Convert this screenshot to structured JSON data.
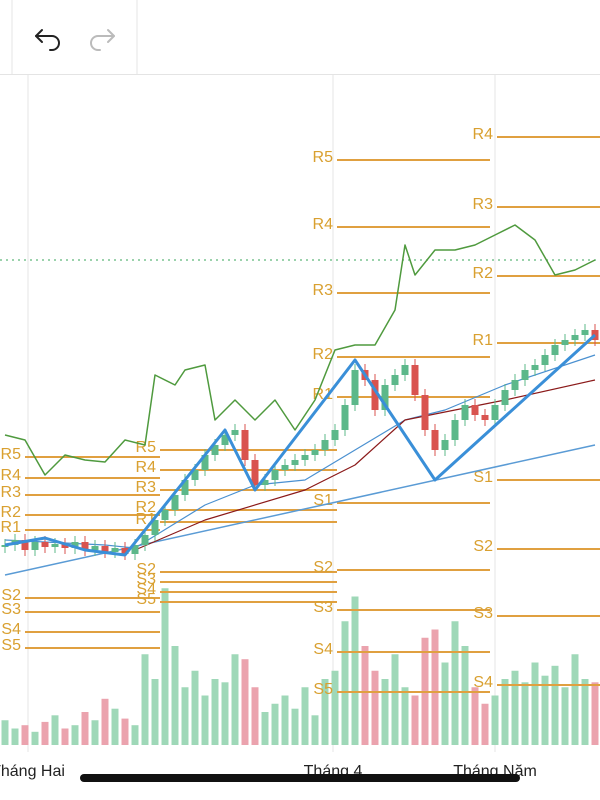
{
  "chart_data": {
    "type": "candlestick",
    "xlim": [
      -0.5,
      59.5
    ],
    "ylim": [
      -120,
      500
    ],
    "volume_lim": [
      0,
      100
    ],
    "up_color": "#5cb88a",
    "down_color": "#d9534f",
    "volume_up_color": "#9fd8b8",
    "volume_down_color": "#eba3ae",
    "xticks": [
      {
        "value": 2.3,
        "label": "Tháng Hai"
      },
      {
        "value": 32.8,
        "label": "Tháng 4"
      },
      {
        "value": 49,
        "label": "Tháng Năm"
      }
    ],
    "grid": true,
    "open": [
      33,
      35,
      40,
      30,
      38,
      33,
      36,
      32,
      38,
      30,
      34,
      28,
      32,
      26,
      35,
      45,
      60,
      70,
      85,
      100,
      110,
      125,
      135,
      145,
      150,
      120,
      95,
      100,
      110,
      115,
      120,
      125,
      130,
      140,
      150,
      175,
      210,
      200,
      170,
      195,
      205,
      215,
      185,
      150,
      130,
      140,
      160,
      175,
      165,
      160,
      175,
      190,
      200,
      210,
      215,
      225,
      235,
      240,
      245,
      250
    ],
    "high": [
      41,
      46,
      46,
      44,
      44,
      42,
      42,
      44,
      44,
      40,
      40,
      38,
      38,
      41,
      51,
      66,
      76,
      91,
      106,
      116,
      131,
      141,
      151,
      156,
      156,
      126,
      106,
      116,
      121,
      126,
      131,
      136,
      146,
      156,
      181,
      216,
      216,
      206,
      201,
      211,
      221,
      221,
      191,
      156,
      146,
      166,
      181,
      181,
      171,
      181,
      196,
      206,
      216,
      221,
      231,
      241,
      246,
      251,
      256,
      256
    ],
    "low": [
      27,
      29,
      24,
      24,
      27,
      27,
      26,
      26,
      24,
      24,
      22,
      22,
      20,
      20,
      29,
      39,
      54,
      64,
      79,
      94,
      104,
      119,
      129,
      139,
      114,
      89,
      89,
      94,
      104,
      109,
      114,
      119,
      124,
      134,
      144,
      169,
      194,
      164,
      164,
      189,
      199,
      179,
      144,
      124,
      124,
      134,
      154,
      159,
      154,
      154,
      169,
      184,
      194,
      204,
      209,
      219,
      229,
      234,
      239,
      234
    ],
    "close": [
      35,
      40,
      30,
      38,
      33,
      36,
      32,
      38,
      30,
      34,
      28,
      32,
      26,
      35,
      45,
      60,
      70,
      85,
      100,
      110,
      125,
      135,
      145,
      150,
      120,
      95,
      100,
      110,
      115,
      120,
      125,
      130,
      140,
      150,
      175,
      210,
      200,
      170,
      195,
      205,
      215,
      185,
      150,
      130,
      140,
      160,
      175,
      165,
      160,
      175,
      190,
      200,
      210,
      215,
      225,
      235,
      240,
      245,
      250,
      240
    ],
    "volume": [
      15,
      10,
      12,
      8,
      14,
      18,
      10,
      12,
      20,
      15,
      28,
      22,
      16,
      12,
      55,
      40,
      95,
      60,
      35,
      45,
      30,
      40,
      38,
      55,
      52,
      35,
      20,
      25,
      30,
      22,
      35,
      18,
      40,
      45,
      75,
      90,
      60,
      45,
      40,
      55,
      35,
      30,
      65,
      70,
      50,
      75,
      60,
      35,
      25,
      30,
      40,
      45,
      38,
      50,
      42,
      48,
      35,
      55,
      40,
      38
    ],
    "lines": [
      {
        "color": "#4f9a3e",
        "width": 1.5,
        "x": [
          0,
          2,
          4,
          6,
          8,
          10,
          12,
          14,
          15,
          17,
          18,
          20,
          21,
          23,
          25,
          27,
          29,
          31,
          33,
          35,
          37,
          39,
          40,
          41,
          43,
          45,
          47,
          49,
          51,
          53,
          55,
          57,
          59
        ],
        "values": [
          145,
          140,
          105,
          125,
          120,
          118,
          140,
          135,
          205,
          195,
          210,
          215,
          160,
          180,
          160,
          180,
          150,
          180,
          230,
          235,
          235,
          270,
          335,
          305,
          330,
          330,
          335,
          345,
          355,
          340,
          305,
          310,
          320
        ]
      },
      {
        "color": "#5a9bd5",
        "width": 1.5,
        "x": [
          0,
          59
        ],
        "values": [
          5,
          135
        ]
      },
      {
        "color": "#4a90d0",
        "width": 1.2,
        "x": [
          0,
          10,
          13,
          20,
          25,
          30,
          35,
          40,
          44,
          50,
          59
        ],
        "values": [
          40,
          35,
          32,
          75,
          95,
          100,
          130,
          160,
          170,
          195,
          225
        ]
      },
      {
        "color": "#8b1a1a",
        "width": 1.2,
        "x": [
          13,
          20,
          30,
          35,
          40,
          45,
          50,
          59
        ],
        "values": [
          30,
          60,
          90,
          115,
          160,
          170,
          180,
          200
        ]
      },
      {
        "color": "#3a8fd8",
        "width": 3,
        "x": [
          0,
          4,
          8,
          12,
          22,
          25,
          35,
          43,
          59
        ],
        "values": [
          35,
          42,
          30,
          25,
          150,
          90,
          220,
          100,
          245
        ]
      }
    ],
    "reference_lines": [
      {
        "value": 320,
        "color": "#5fb87a"
      }
    ],
    "pivot_color": "#e0a040",
    "pivots": [
      {
        "start": 2,
        "end": 15.5,
        "levels": [
          {
            "label": "R5",
            "value": 123
          },
          {
            "label": "R4",
            "value": 102
          },
          {
            "label": "R3",
            "value": 85
          },
          {
            "label": "R2",
            "value": 65
          },
          {
            "label": "R1",
            "value": 50
          },
          {
            "label": "S2",
            "value": -18
          },
          {
            "label": "S3",
            "value": -32
          },
          {
            "label": "S4",
            "value": -52
          },
          {
            "label": "S5",
            "value": -68
          }
        ]
      },
      {
        "start": 15.5,
        "end": 33.2,
        "levels": [
          {
            "label": "R5",
            "value": 130
          },
          {
            "label": "R4",
            "value": 110
          },
          {
            "label": "R3",
            "value": 90
          },
          {
            "label": "R2",
            "value": 70
          },
          {
            "label": "R1",
            "value": 58
          },
          {
            "label": "S2",
            "value": 8
          },
          {
            "label": "S3",
            "value": -2
          },
          {
            "label": "S4",
            "value": -12
          },
          {
            "label": "S5",
            "value": -22
          }
        ]
      },
      {
        "start": 33.2,
        "end": 48.5,
        "levels": [
          {
            "label": "R5",
            "value": 420
          },
          {
            "label": "R4",
            "value": 353
          },
          {
            "label": "R3",
            "value": 287
          },
          {
            "label": "R2",
            "value": 223
          },
          {
            "label": "R1",
            "value": 183
          },
          {
            "label": "S1",
            "value": 77
          },
          {
            "label": "S2",
            "value": 10
          },
          {
            "label": "S3",
            "value": -30
          },
          {
            "label": "S4",
            "value": -72
          },
          {
            "label": "S5",
            "value": -112
          }
        ]
      },
      {
        "start": 49.2,
        "end": 59.5,
        "levels": [
          {
            "label": "R4",
            "value": 443
          },
          {
            "label": "R3",
            "value": 373
          },
          {
            "label": "R2",
            "value": 304
          },
          {
            "label": "R1",
            "value": 237
          },
          {
            "label": "S1",
            "value": 100
          },
          {
            "label": "S2",
            "value": 31
          },
          {
            "label": "S3",
            "value": -36
          },
          {
            "label": "S4",
            "value": -105
          }
        ]
      }
    ]
  }
}
